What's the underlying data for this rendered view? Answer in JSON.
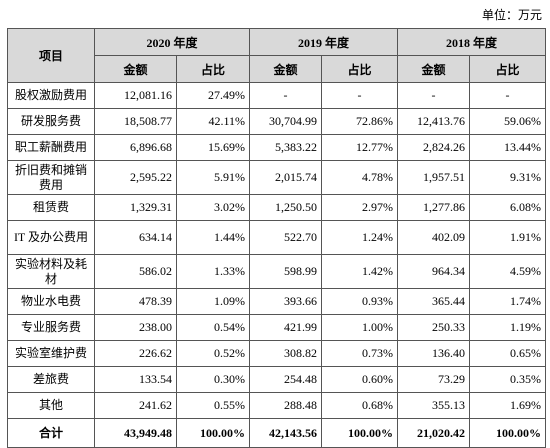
{
  "header": {
    "unit": "单位：万元"
  },
  "table": {
    "corner": "项目",
    "years": [
      "2020 年度",
      "2019 年度",
      "2018 年度"
    ],
    "subheaders": [
      "金额",
      "占比",
      "金额",
      "占比",
      "金额",
      "占比"
    ],
    "rows": [
      [
        "股权激励费用",
        "12,081.16",
        "27.49%",
        "-",
        "-",
        "-",
        "-"
      ],
      [
        "研发服务费",
        "18,508.77",
        "42.11%",
        "30,704.99",
        "72.86%",
        "12,413.76",
        "59.06%"
      ],
      [
        "职工薪酬费用",
        "6,896.68",
        "15.69%",
        "5,383.22",
        "12.77%",
        "2,824.26",
        "13.44%"
      ],
      [
        "折旧费和摊销费用",
        "2,595.22",
        "5.91%",
        "2,015.74",
        "4.78%",
        "1,957.51",
        "9.31%"
      ],
      [
        "租赁费",
        "1,329.31",
        "3.02%",
        "1,250.50",
        "2.97%",
        "1,277.86",
        "6.08%"
      ],
      [
        "IT 及办公费用",
        "634.14",
        "1.44%",
        "522.70",
        "1.24%",
        "402.09",
        "1.91%"
      ],
      [
        "实验材料及耗材",
        "586.02",
        "1.33%",
        "598.99",
        "1.42%",
        "964.34",
        "4.59%"
      ],
      [
        "物业水电费",
        "478.39",
        "1.09%",
        "393.66",
        "0.93%",
        "365.44",
        "1.74%"
      ],
      [
        "专业服务费",
        "238.00",
        "0.54%",
        "421.99",
        "1.00%",
        "250.33",
        "1.19%"
      ],
      [
        "实验室维护费",
        "226.62",
        "0.52%",
        "308.82",
        "0.73%",
        "136.40",
        "0.65%"
      ],
      [
        "差旅费",
        "133.54",
        "0.30%",
        "254.48",
        "0.60%",
        "73.29",
        "0.35%"
      ],
      [
        "其他",
        "241.62",
        "0.55%",
        "288.48",
        "0.68%",
        "355.13",
        "1.69%"
      ],
      [
        "合计",
        "43,949.48",
        "100.00%",
        "42,143.56",
        "100.00%",
        "21,020.42",
        "100.00%"
      ]
    ]
  }
}
